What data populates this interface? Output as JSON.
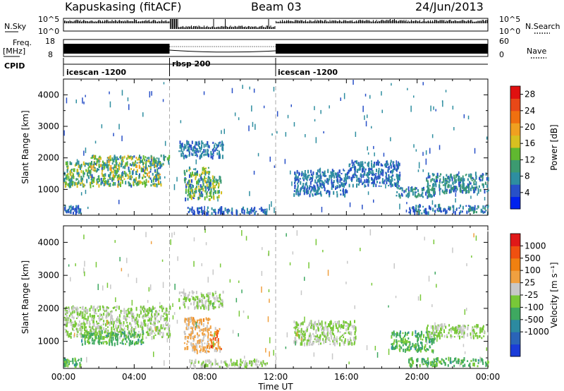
{
  "header": {
    "station": "Kapuskasing (fitACF)",
    "beam": "Beam 03",
    "date": "24/Jun/2013"
  },
  "noise_panel": {
    "left_label": "N.Sky",
    "right_label": "N.Search",
    "left_ticks": [
      "10^5",
      "10^0"
    ],
    "right_ticks": [
      "10^5",
      "10^0"
    ]
  },
  "freq_panel": {
    "left_label_1": "Freq.",
    "left_label_2": "[MHz]",
    "right_label": "Nave",
    "left_ticks": [
      "18",
      "8"
    ],
    "right_ticks": [
      "60",
      "0"
    ]
  },
  "cpid_panel": {
    "label": "CPID",
    "segments": [
      {
        "name": "icescan -1200",
        "start_hour": 0,
        "end_hour": 6
      },
      {
        "name": "rbsp 200",
        "start_hour": 6,
        "end_hour": 12
      },
      {
        "name": "icescan -1200",
        "start_hour": 12,
        "end_hour": 24
      }
    ]
  },
  "chart_data": [
    {
      "type": "heatmap",
      "panel": "power",
      "ylabel": "Slant Range [km]",
      "xlabel": "Time UT",
      "x_ticks": [
        "00:00",
        "04:00",
        "08:00",
        "12:00",
        "16:00",
        "20:00",
        "00:00"
      ],
      "x_range_hours": [
        0,
        24
      ],
      "y_ticks": [
        1000,
        2000,
        3000,
        4000
      ],
      "ylim": [
        180,
        4500
      ],
      "colorbar_label": "Power [dB]",
      "colorbar_ticks": [
        4,
        8,
        12,
        16,
        20,
        24,
        28
      ],
      "colorbar_range": [
        0,
        30
      ],
      "colorbar_colors": [
        "#0022ee",
        "#2850c8",
        "#2e8ea0",
        "#3c9a70",
        "#60b830",
        "#d8c020",
        "#f0a020",
        "#f07010",
        "#e84818",
        "#e01010"
      ],
      "scatter_regions": [
        {
          "t": [
            0.0,
            1.5
          ],
          "r": [
            1100,
            1850
          ],
          "val": [
            6,
            18
          ]
        },
        {
          "t": [
            1.5,
            5.5
          ],
          "r": [
            1100,
            2050
          ],
          "val": [
            5,
            20
          ]
        },
        {
          "t": [
            5.0,
            6.0
          ],
          "r": [
            1750,
            2100
          ],
          "val": [
            6,
            16
          ]
        },
        {
          "t": [
            0.0,
            1.0
          ],
          "r": [
            240,
            460
          ],
          "val": [
            3,
            9
          ]
        },
        {
          "t": [
            6.8,
            8.3
          ],
          "r": [
            650,
            1700
          ],
          "val": [
            4,
            18
          ]
        },
        {
          "t": [
            8.3,
            8.9
          ],
          "r": [
            700,
            1400
          ],
          "val": [
            6,
            18
          ]
        },
        {
          "t": [
            6.5,
            9.0
          ],
          "r": [
            2000,
            2500
          ],
          "val": [
            4,
            9
          ]
        },
        {
          "t": [
            7.0,
            11.5
          ],
          "r": [
            220,
            420
          ],
          "val": [
            3,
            8
          ]
        },
        {
          "t": [
            13.0,
            16.0
          ],
          "r": [
            800,
            1600
          ],
          "val": [
            4,
            9
          ]
        },
        {
          "t": [
            16.0,
            19.0
          ],
          "r": [
            1100,
            1900
          ],
          "val": [
            4,
            9
          ]
        },
        {
          "t": [
            18.7,
            21.0
          ],
          "r": [
            750,
            1050
          ],
          "val": [
            4,
            12
          ]
        },
        {
          "t": [
            20.5,
            24.0
          ],
          "r": [
            900,
            1500
          ],
          "val": [
            4,
            12
          ]
        },
        {
          "t": [
            19.5,
            24.0
          ],
          "r": [
            240,
            480
          ],
          "val": [
            3,
            10
          ]
        },
        {
          "t": [
            0.0,
            24.0
          ],
          "r": [
            300,
            4400
          ],
          "val": [
            4,
            9
          ]
        }
      ]
    },
    {
      "type": "heatmap",
      "panel": "velocity",
      "ylabel": "Slant Range [km]",
      "xlabel": "Time UT",
      "x_ticks": [
        "00:00",
        "04:00",
        "08:00",
        "12:00",
        "16:00",
        "20:00",
        "00:00"
      ],
      "x_range_hours": [
        0,
        24
      ],
      "y_ticks": [
        1000,
        2000,
        3000,
        4000
      ],
      "ylim": [
        180,
        4500
      ],
      "colorbar_label": "Velocity [m s⁻¹]",
      "colorbar_ticks": [
        "1000",
        "500",
        "100",
        "25",
        "-25",
        "-100",
        "-500",
        "-1000"
      ],
      "colorbar_range": [
        -1200,
        1200
      ],
      "colorbar_colors": [
        "#1a3cd8",
        "#2a64b8",
        "#2c8aa0",
        "#3ea860",
        "#78c838",
        "#c8c8c8",
        "#f0a040",
        "#f08010",
        "#f05010",
        "#e01818"
      ],
      "scatter_regions": [
        {
          "t": [
            0.0,
            6.0
          ],
          "r": [
            1100,
            2050
          ],
          "val": [
            -25,
            25
          ]
        },
        {
          "t": [
            1.0,
            4.5
          ],
          "r": [
            900,
            1300
          ],
          "val": [
            -500,
            -100
          ]
        },
        {
          "t": [
            0.0,
            1.0
          ],
          "r": [
            240,
            460
          ],
          "val": [
            -500,
            -100
          ]
        },
        {
          "t": [
            6.8,
            8.3
          ],
          "r": [
            650,
            1700
          ],
          "val": [
            100,
            500
          ]
        },
        {
          "t": [
            8.3,
            8.9
          ],
          "r": [
            700,
            1400
          ],
          "val": [
            100,
            1000
          ]
        },
        {
          "t": [
            6.5,
            9.0
          ],
          "r": [
            2000,
            2500
          ],
          "val": [
            -25,
            25
          ]
        },
        {
          "t": [
            7.0,
            11.5
          ],
          "r": [
            220,
            420
          ],
          "val": [
            -100,
            100
          ]
        },
        {
          "t": [
            13.0,
            16.5
          ],
          "r": [
            900,
            1600
          ],
          "val": [
            -25,
            25
          ]
        },
        {
          "t": [
            18.5,
            21.0
          ],
          "r": [
            700,
            1300
          ],
          "val": [
            -500,
            -100
          ]
        },
        {
          "t": [
            20.5,
            24.0
          ],
          "r": [
            1100,
            1500
          ],
          "val": [
            -25,
            25
          ]
        },
        {
          "t": [
            19.5,
            24.0
          ],
          "r": [
            240,
            480
          ],
          "val": [
            -500,
            -100
          ]
        },
        {
          "t": [
            0.0,
            24.0
          ],
          "r": [
            300,
            4400
          ],
          "val": [
            -300,
            300
          ]
        }
      ]
    }
  ],
  "colors": {
    "axis": "#000000",
    "dashed_marker": "#aaaaaa"
  }
}
